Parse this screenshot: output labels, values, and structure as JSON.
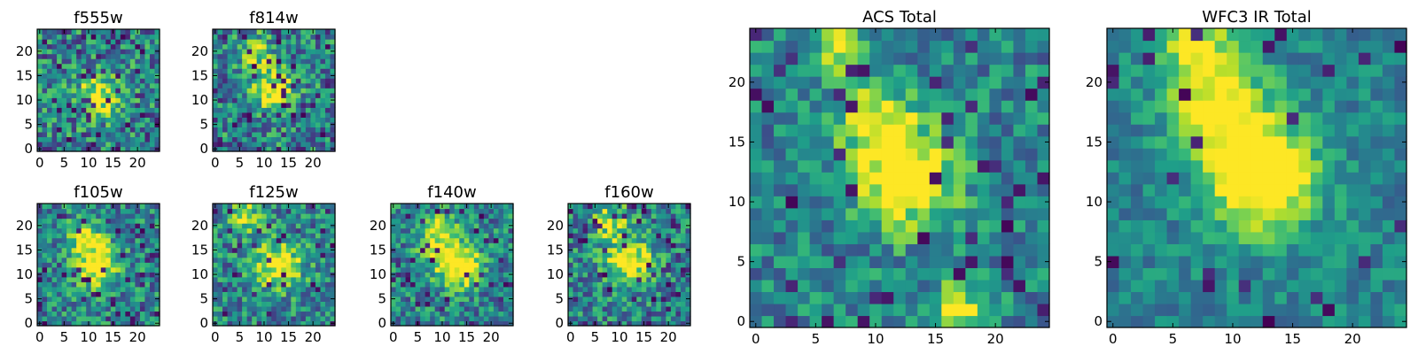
{
  "chart_data": {
    "type": "heatmap",
    "colormap": "viridis",
    "grid": false,
    "panels": [
      {
        "id": "f555w",
        "title": "f555w",
        "xlim": [
          0,
          25
        ],
        "ylim": [
          0,
          25
        ],
        "xticks": [
          "0",
          "5",
          "10",
          "15",
          "20"
        ],
        "yticks": [
          "0",
          "5",
          "10",
          "15",
          "20"
        ],
        "hotspots": [
          [
            12,
            11,
            0.55,
            3.0
          ]
        ],
        "noise": 0.62,
        "dark_fraction": 0.09,
        "seed": 11
      },
      {
        "id": "f814w",
        "title": "f814w",
        "xlim": [
          0,
          25
        ],
        "ylim": [
          0,
          25
        ],
        "xticks": [
          "0",
          "5",
          "10",
          "15",
          "20"
        ],
        "yticks": [
          "0",
          "5",
          "10",
          "15",
          "20"
        ],
        "hotspots": [
          [
            12,
            12,
            0.6,
            3.2
          ],
          [
            8,
            20,
            0.35,
            2.5
          ]
        ],
        "noise": 0.6,
        "dark_fraction": 0.08,
        "seed": 23
      },
      {
        "id": "f105w",
        "title": "f105w",
        "xlim": [
          0,
          25
        ],
        "ylim": [
          0,
          25
        ],
        "xticks": [
          "0",
          "5",
          "10",
          "15",
          "20"
        ],
        "yticks": [
          "0",
          "5",
          "10",
          "15",
          "20"
        ],
        "hotspots": [
          [
            12,
            12,
            0.6,
            3.2
          ],
          [
            9,
            18,
            0.4,
            2.6
          ]
        ],
        "noise": 0.55,
        "dark_fraction": 0.07,
        "seed": 37
      },
      {
        "id": "f125w",
        "title": "f125w",
        "xlim": [
          0,
          25
        ],
        "ylim": [
          0,
          25
        ],
        "xticks": [
          "0",
          "5",
          "10",
          "15",
          "20"
        ],
        "yticks": [
          "0",
          "5",
          "10",
          "15",
          "20"
        ],
        "hotspots": [
          [
            13,
            12,
            0.6,
            3.4
          ],
          [
            6,
            22,
            0.4,
            2.5
          ]
        ],
        "noise": 0.55,
        "dark_fraction": 0.07,
        "seed": 41
      },
      {
        "id": "f140w",
        "title": "f140w",
        "xlim": [
          0,
          25
        ],
        "ylim": [
          0,
          25
        ],
        "xticks": [
          "0",
          "5",
          "10",
          "15",
          "20"
        ],
        "yticks": [
          "0",
          "5",
          "10",
          "15",
          "20"
        ],
        "hotspots": [
          [
            12,
            13,
            0.55,
            3.5
          ],
          [
            9,
            19,
            0.45,
            2.6
          ],
          [
            15,
            11,
            0.4,
            2.4
          ]
        ],
        "noise": 0.55,
        "dark_fraction": 0.08,
        "seed": 53
      },
      {
        "id": "f160w",
        "title": "f160w",
        "xlim": [
          0,
          25
        ],
        "ylim": [
          0,
          25
        ],
        "xticks": [
          "0",
          "5",
          "10",
          "15",
          "20"
        ],
        "yticks": [
          "0",
          "5",
          "10",
          "15",
          "20"
        ],
        "hotspots": [
          [
            12,
            13,
            0.6,
            3.4
          ],
          [
            8,
            21,
            0.45,
            2.6
          ]
        ],
        "noise": 0.55,
        "dark_fraction": 0.07,
        "seed": 67
      },
      {
        "id": "acs-total",
        "title": "ACS Total",
        "xlim": [
          0,
          25
        ],
        "ylim": [
          0,
          25
        ],
        "xticks": [
          "0",
          "5",
          "10",
          "15",
          "20"
        ],
        "yticks": [
          "0",
          "5",
          "10",
          "15",
          "20"
        ],
        "hotspots": [
          [
            12.5,
            12,
            0.75,
            2.8
          ],
          [
            10,
            17,
            0.45,
            2.4
          ],
          [
            7,
            23,
            0.5,
            1.6
          ],
          [
            17,
            1,
            0.55,
            1.6
          ]
        ],
        "noise": 0.45,
        "dark_fraction": 0.07,
        "seed": 79
      },
      {
        "id": "wfc3-ir-total",
        "title": "WFC3 IR Total",
        "xlim": [
          0,
          25
        ],
        "ylim": [
          0,
          25
        ],
        "xticks": [
          "0",
          "5",
          "10",
          "15",
          "20"
        ],
        "yticks": [
          "0",
          "5",
          "10",
          "15",
          "20"
        ],
        "hotspots": [
          [
            12.5,
            12,
            0.85,
            3.0
          ],
          [
            9,
            18,
            0.6,
            2.8
          ],
          [
            7,
            23,
            0.5,
            2.0
          ]
        ],
        "noise": 0.32,
        "dark_fraction": 0.04,
        "seed": 97
      }
    ]
  }
}
